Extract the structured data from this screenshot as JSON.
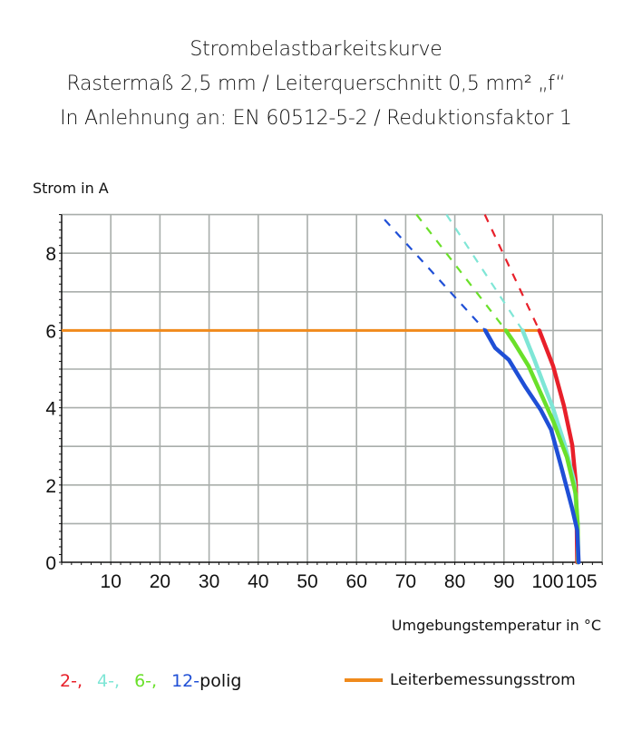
{
  "chart_data": {
    "type": "line",
    "title": [
      "Strombelastbarkeitskurve",
      "Rastermaß 2,5 mm / Leiterquerschnitt 0,5 mm² „f“",
      "In Anlehnung an: EN 60512-5-2 / Reduktionsfaktor 1"
    ],
    "xlabel": "Umgebungstemperatur in °C",
    "ylabel": "Strom in A",
    "xlim": [
      0,
      110
    ],
    "ylim": [
      0,
      9
    ],
    "xticks": [
      10,
      20,
      30,
      40,
      50,
      60,
      70,
      80,
      90,
      100,
      105
    ],
    "yticks": [
      0,
      2,
      4,
      6,
      8
    ],
    "grid": true,
    "series": [
      {
        "name": "2-",
        "color": "#e8202a",
        "dashed": [
          [
            86.1,
            9.0
          ],
          [
            97.2,
            6.0
          ]
        ],
        "solid": [
          [
            97.2,
            6.0
          ],
          [
            100.0,
            5.08
          ],
          [
            102.2,
            4.05
          ],
          [
            103.9,
            3.03
          ],
          [
            104.6,
            2.09
          ],
          [
            104.8,
            1.0
          ],
          [
            104.9,
            0
          ]
        ]
      },
      {
        "name": "4-",
        "color": "#7fe6d6",
        "dashed": [
          [
            78.3,
            9.0
          ],
          [
            93.8,
            6.0
          ]
        ],
        "solid": [
          [
            93.8,
            6.0
          ],
          [
            96.2,
            5.24
          ],
          [
            98.1,
            4.6
          ],
          [
            100.0,
            3.98
          ],
          [
            102.4,
            3.03
          ],
          [
            104.3,
            2.09
          ],
          [
            105.0,
            1.0
          ],
          [
            105.1,
            0
          ]
        ]
      },
      {
        "name": "6-",
        "color": "#6ae02a",
        "dashed": [
          [
            72.2,
            9.0
          ],
          [
            90.4,
            6.0
          ]
        ],
        "solid": [
          [
            90.4,
            6.0
          ],
          [
            92.0,
            5.7
          ],
          [
            95.0,
            5.08
          ],
          [
            97.5,
            4.37
          ],
          [
            100.0,
            3.66
          ],
          [
            102.8,
            2.72
          ],
          [
            104.6,
            1.77
          ],
          [
            105.0,
            1.0
          ],
          [
            105.1,
            0
          ]
        ]
      },
      {
        "name": "12-",
        "color": "#1f4fd6",
        "dashed": [
          [
            65.7,
            8.87
          ],
          [
            86.2,
            6.0
          ]
        ],
        "solid": [
          [
            86.2,
            6.0
          ],
          [
            88.2,
            5.55
          ],
          [
            91.0,
            5.24
          ],
          [
            94.4,
            4.53
          ],
          [
            97.5,
            3.94
          ],
          [
            99.6,
            3.43
          ],
          [
            101.8,
            2.4
          ],
          [
            103.9,
            1.38
          ],
          [
            104.9,
            0.83
          ],
          [
            105.2,
            0
          ]
        ]
      }
    ],
    "reference_line": {
      "name": "Leiterbemessungsstrom",
      "color": "#f08a1c",
      "y": 6,
      "x": [
        0,
        97.2
      ]
    },
    "legend": {
      "items": [
        "2-,",
        "4-,",
        "6-,",
        "12-"
      ],
      "suffix": "polig",
      "reference": "Leiterbemessungsstrom"
    }
  }
}
